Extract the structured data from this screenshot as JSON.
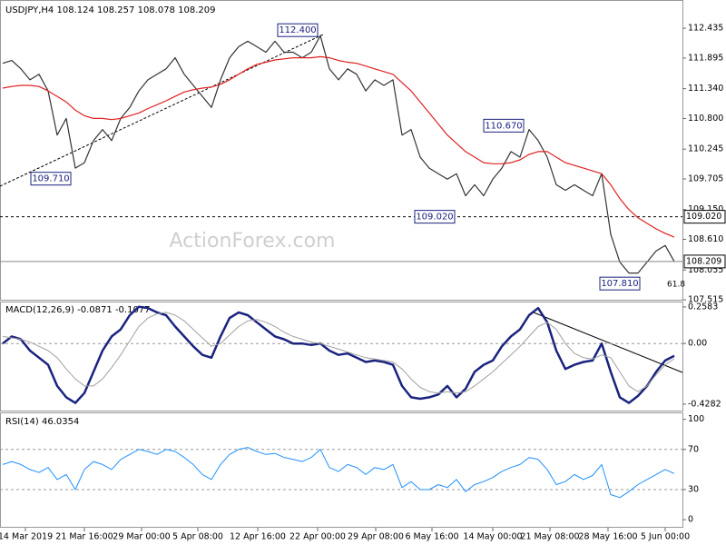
{
  "chart_data": [
    {
      "type": "line",
      "title": "USDJPY,H4",
      "ohlc": [
        108.124,
        108.257,
        108.078,
        108.209
      ],
      "watermark": "ActionForex.com",
      "fib_label": "61.8",
      "ylim": [
        107.5,
        112.93
      ],
      "yticks": [
        112.435,
        111.895,
        {
          "value": 111.34,
          "label": "111.340"
        },
        {
          "value": 110.8,
          "label": "110.800"
        },
        110.245,
        109.705,
        {
          "value": 109.15,
          "label": "109.150"
        },
        {
          "value": 108.61,
          "label": "108.610"
        },
        108.055,
        107.515
      ],
      "levels": [
        {
          "value": 109.02,
          "label": "109.020"
        }
      ],
      "annotations": [
        {
          "label": "112.400",
          "value": 112.4,
          "x": 32.5
        },
        {
          "label": "109.710",
          "value": 109.71,
          "x": 5.3
        },
        {
          "label": "110.670",
          "value": 110.67,
          "x": 55.2
        },
        {
          "label": "109.020",
          "value": 109.02,
          "x": 47.6
        },
        {
          "label": "107.810",
          "value": 107.81,
          "x": 68
        }
      ],
      "series": [
        {
          "color": "#333333",
          "values": [
            111.8,
            111.85,
            111.7,
            111.5,
            111.6,
            111.3,
            110.5,
            110.8,
            109.9,
            110.0,
            110.4,
            110.6,
            110.4,
            110.8,
            111.0,
            111.3,
            111.5,
            111.6,
            111.7,
            111.9,
            111.6,
            111.4,
            111.2,
            111.0,
            111.5,
            111.9,
            112.1,
            112.2,
            112.1,
            112.0,
            112.2,
            112.0,
            112.0,
            111.9,
            112.0,
            112.3,
            111.7,
            111.5,
            111.7,
            111.6,
            111.3,
            111.5,
            111.4,
            111.5,
            110.5,
            110.6,
            110.1,
            109.9,
            109.8,
            109.7,
            109.8,
            109.4,
            109.6,
            109.4,
            109.7,
            109.9,
            110.2,
            110.1,
            110.6,
            110.4,
            110.1,
            109.6,
            109.5,
            109.6,
            109.5,
            109.4,
            109.8,
            108.7,
            108.2,
            108.0,
            108.0,
            108.2,
            108.4,
            108.5,
            108.209
          ]
        },
        {
          "color": "#e02020",
          "values": [
            111.35,
            111.38,
            111.4,
            111.4,
            111.38,
            111.3,
            111.2,
            111.1,
            110.95,
            110.85,
            110.8,
            110.8,
            110.78,
            110.8,
            110.85,
            110.9,
            110.98,
            111.05,
            111.12,
            111.2,
            111.28,
            111.32,
            111.35,
            111.37,
            111.42,
            111.5,
            111.6,
            111.7,
            111.78,
            111.82,
            111.86,
            111.88,
            111.9,
            111.9,
            111.9,
            111.92,
            111.9,
            111.85,
            111.82,
            111.8,
            111.75,
            111.7,
            111.65,
            111.6,
            111.45,
            111.3,
            111.1,
            110.9,
            110.7,
            110.5,
            110.35,
            110.2,
            110.1,
            110.0,
            109.98,
            109.98,
            110.0,
            110.05,
            110.15,
            110.2,
            110.2,
            110.1,
            110.0,
            109.95,
            109.9,
            109.85,
            109.8,
            109.6,
            109.35,
            109.15,
            109.0,
            108.9,
            108.8,
            108.72,
            108.65
          ]
        }
      ]
    },
    {
      "type": "line",
      "title": "MACD(12,26,9)",
      "ylim": [
        -0.48,
        0.29
      ],
      "yticks": [
        0.2583,
        {
          "value": 0,
          "label": "0.00"
        },
        -0.4282
      ],
      "levels": [
        0
      ],
      "series": [
        {
          "color": "#1a237e",
          "width": 2.5,
          "values": [
            0,
            0.05,
            0.03,
            -0.05,
            -0.1,
            -0.15,
            -0.3,
            -0.38,
            -0.42,
            -0.35,
            -0.2,
            -0.05,
            0.05,
            0.1,
            0.2,
            0.26,
            0.25,
            0.22,
            0.2,
            0.12,
            0.05,
            -0.02,
            -0.08,
            -0.1,
            0.05,
            0.18,
            0.22,
            0.2,
            0.15,
            0.1,
            0.05,
            0.03,
            0,
            0,
            -0.01,
            0,
            -0.05,
            -0.08,
            -0.07,
            -0.1,
            -0.13,
            -0.12,
            -0.13,
            -0.15,
            -0.3,
            -0.38,
            -0.39,
            -0.38,
            -0.36,
            -0.3,
            -0.38,
            -0.32,
            -0.2,
            -0.15,
            -0.12,
            -0.02,
            0.05,
            0.1,
            0.2,
            0.25,
            0.15,
            -0.05,
            -0.18,
            -0.15,
            -0.13,
            -0.12,
            0,
            -0.2,
            -0.38,
            -0.42,
            -0.37,
            -0.3,
            -0.2,
            -0.12,
            -0.0871
          ]
        },
        {
          "color": "#a0a0a0",
          "width": 1,
          "values": [
            0.05,
            0.04,
            0.03,
            0.01,
            -0.02,
            -0.05,
            -0.1,
            -0.18,
            -0.25,
            -0.3,
            -0.3,
            -0.25,
            -0.17,
            -0.08,
            0.02,
            0.12,
            0.18,
            0.21,
            0.22,
            0.2,
            0.16,
            0.1,
            0.04,
            -0.02,
            0,
            0.06,
            0.12,
            0.16,
            0.17,
            0.15,
            0.12,
            0.08,
            0.05,
            0.03,
            0.01,
            0,
            -0.02,
            -0.04,
            -0.06,
            -0.08,
            -0.1,
            -0.11,
            -0.12,
            -0.13,
            -0.18,
            -0.25,
            -0.31,
            -0.34,
            -0.35,
            -0.34,
            -0.35,
            -0.34,
            -0.3,
            -0.25,
            -0.2,
            -0.14,
            -0.08,
            -0.02,
            0.05,
            0.12,
            0.15,
            0.1,
            0,
            -0.07,
            -0.1,
            -0.11,
            -0.08,
            -0.1,
            -0.2,
            -0.3,
            -0.34,
            -0.3,
            -0.22,
            -0.15,
            -0.1077
          ]
        }
      ]
    },
    {
      "type": "line",
      "title": "RSI(14)",
      "ylim": [
        -8,
        106
      ],
      "yticks": [
        100,
        70,
        30,
        0
      ],
      "levels": [
        70,
        30
      ],
      "xlim": [
        -0.3,
        74.9
      ],
      "xticks": [
        {
          "value": 2.5,
          "label": "14 Mar 2019"
        },
        {
          "value": 9,
          "label": "21 Mar 16:00"
        },
        {
          "value": 15.3,
          "label": "29 Mar 00:00"
        },
        {
          "value": 21.5,
          "label": "5 Apr 08:00"
        },
        {
          "value": 28.1,
          "label": "12 Apr 16:00"
        },
        {
          "value": 34.7,
          "label": "22 Apr 00:00"
        },
        {
          "value": 41.1,
          "label": "29 Apr 08:00"
        },
        {
          "value": 47.3,
          "label": "6 May 16:00"
        },
        {
          "value": 54,
          "label": "14 May 00:00"
        },
        {
          "value": 60.3,
          "label": "21 May 08:00"
        },
        {
          "value": 66.7,
          "label": "28 May 16:00"
        },
        {
          "value": 73,
          "label": "5 Jun 00:00"
        }
      ],
      "series": [
        {
          "color": "#1e90ff",
          "width": 1,
          "values": [
            55,
            58,
            55,
            50,
            47,
            52,
            40,
            45,
            30,
            50,
            58,
            55,
            50,
            60,
            65,
            70,
            68,
            65,
            70,
            68,
            62,
            55,
            45,
            40,
            55,
            65,
            70,
            72,
            68,
            65,
            66,
            62,
            60,
            58,
            62,
            70,
            52,
            48,
            55,
            52,
            45,
            52,
            50,
            55,
            32,
            38,
            30,
            30,
            35,
            32,
            40,
            28,
            35,
            38,
            42,
            48,
            52,
            55,
            62,
            60,
            50,
            35,
            38,
            45,
            40,
            44,
            55,
            25,
            22,
            28,
            35,
            40,
            45,
            50,
            46.0354
          ]
        }
      ]
    }
  ]
}
